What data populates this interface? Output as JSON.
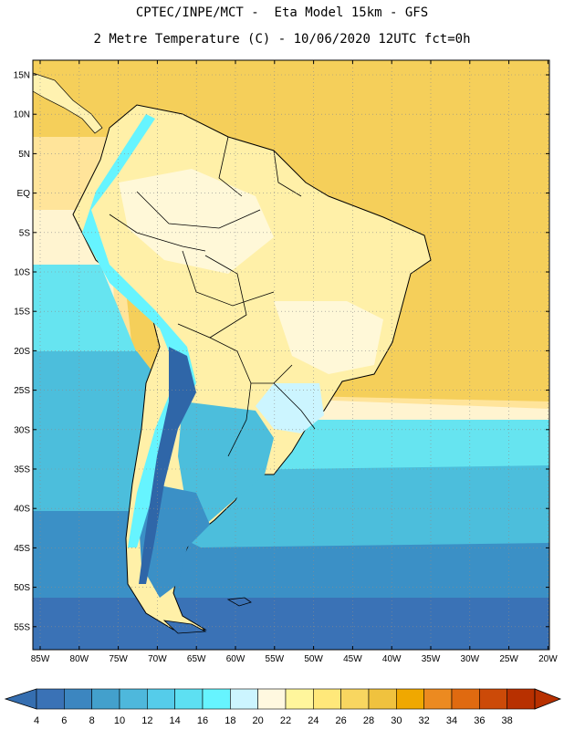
{
  "title_line1": "CPTEC/INPE/MCT -  Eta Model 15km - GFS",
  "title_line2": "2 Metre Temperature (C) - 10/06/2020 12UTC fct=0h",
  "lat_ticks": [
    "15N",
    "10N",
    "5N",
    "EQ",
    "5S",
    "10S",
    "15S",
    "20S",
    "25S",
    "30S",
    "35S",
    "40S",
    "45S",
    "50S",
    "55S"
  ],
  "lon_ticks": [
    "85W",
    "80W",
    "75W",
    "70W",
    "65W",
    "60W",
    "55W",
    "50W",
    "45W",
    "40W",
    "35W",
    "30W",
    "25W",
    "20W"
  ],
  "colorbar": {
    "labels": [
      "4",
      "6",
      "8",
      "10",
      "12",
      "14",
      "16",
      "18",
      "20",
      "22",
      "24",
      "26",
      "28",
      "30",
      "32",
      "34",
      "36",
      "38"
    ],
    "colors": [
      "#3a72b6",
      "#3c86c0",
      "#43a0cc",
      "#4eb8dc",
      "#55ccea",
      "#5de0f2",
      "#66f4ff",
      "#ccf5ff",
      "#fff8e0",
      "#fff69c",
      "#ffe87a",
      "#f8d660",
      "#f0c23e",
      "#f0a800",
      "#ec8a20",
      "#e06a10",
      "#cc4a08",
      "#b83000"
    ],
    "under_color": "#356eb0",
    "over_color": "#b83000"
  },
  "palette": {
    "land_warm": "#fff0a8",
    "land_pale": "#fff8d8",
    "ocean_hot": "#f5cf5a",
    "ocean_warm": "#ffe49a",
    "ocean_cool": "#66e4f0",
    "ocean_cold": "#4cbedc",
    "ocean_colder": "#3b90c6",
    "ocean_coldest": "#3a72b6",
    "andes": "#2f66a8"
  }
}
